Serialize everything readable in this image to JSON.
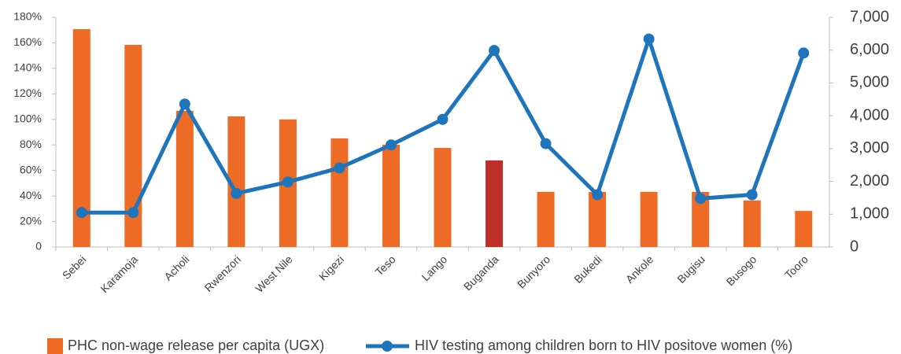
{
  "chart_data": {
    "type": "bar-line",
    "categories": [
      "Sebei",
      "Karamoja",
      "Acholi",
      "Rwenzori",
      "West Nile",
      "Kigezi",
      "Teso",
      "Lango",
      "Buganda",
      "Bunyoro",
      "Bukedi",
      "Ankole",
      "Bugisu",
      "Busogo",
      "Tooro"
    ],
    "series": [
      {
        "name": "PHC non-wage release per capita (UGX)",
        "type": "bar",
        "axis": "y2",
        "color": "#ed6b24",
        "highlight_color": "#c0302a",
        "highlight_category": "Buganda",
        "values": [
          6640,
          6160,
          4150,
          3980,
          3890,
          3310,
          3120,
          3020,
          2640,
          1680,
          1680,
          1680,
          1680,
          1420,
          1100
        ]
      },
      {
        "name": "HIV testing among children born to HIV positove women (%)",
        "type": "line",
        "axis": "y",
        "color": "#1f75bc",
        "values": [
          27,
          27,
          112,
          42,
          51,
          62,
          80,
          100,
          154,
          81,
          41,
          163,
          38,
          41,
          152
        ]
      }
    ],
    "ylim": [
      0,
      180
    ],
    "yticks": [
      0,
      {
        "value": 20,
        "label": "20%"
      },
      {
        "value": 40,
        "label": "40%"
      },
      {
        "value": 60,
        "label": "60%"
      },
      {
        "value": 80,
        "label": "80%"
      },
      {
        "value": 100,
        "label": "100%"
      },
      {
        "value": 120,
        "label": "120%"
      },
      {
        "value": 140,
        "label": "140%"
      },
      {
        "value": 160,
        "label": "160%"
      },
      {
        "value": 180,
        "label": "180%"
      }
    ],
    "y2lim": [
      0,
      7000
    ],
    "y2ticks": [
      0,
      {
        "value": 1000,
        "label": "1,000"
      },
      {
        "value": 2000,
        "label": "2,000"
      },
      {
        "value": 3000,
        "label": "3,000"
      },
      {
        "value": 4000,
        "label": "4,000"
      },
      {
        "value": 5000,
        "label": "5,000"
      },
      {
        "value": 6000,
        "label": "6,000"
      },
      {
        "value": 7000,
        "label": "7,000"
      }
    ],
    "grid": false,
    "legend": "bottom"
  }
}
